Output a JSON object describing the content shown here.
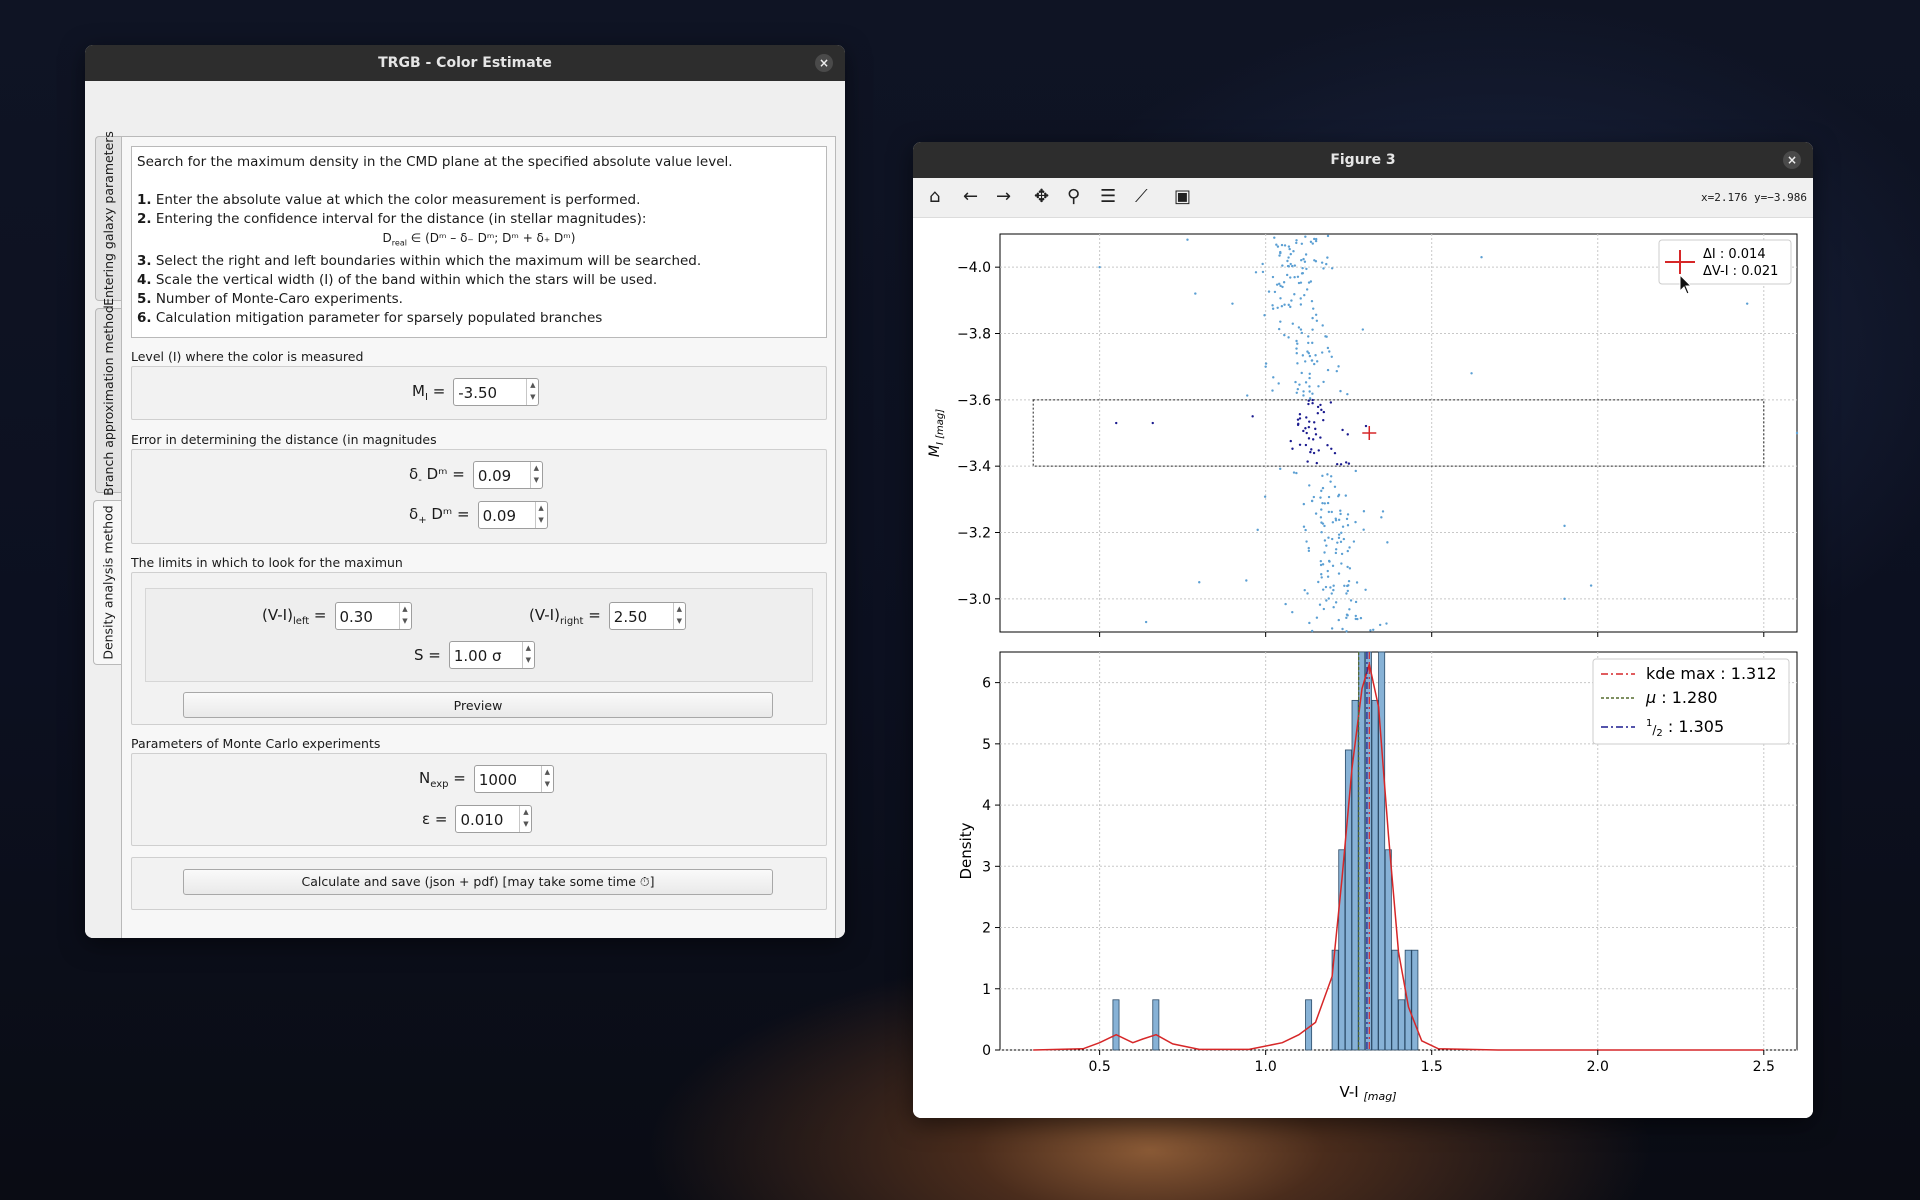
{
  "colors": {
    "accent": "#1f77b4",
    "kde": "#d62728",
    "selected": "#1b1b8f",
    "scatter": "#5b9fd3"
  },
  "left_window": {
    "title": "TRGB - Color Estimate",
    "close": "×",
    "tabs": [
      "Entering galaxy parameters",
      "Branch approximation method",
      "Density analysis method"
    ],
    "desc": {
      "intro": "Search for the maximum density in the CMD plane at the specified absolute value level.",
      "s1n": "1.",
      "s1": "Enter the absolute value at which the color measurement is performed.",
      "s2n": "2.",
      "s2": "Entering the confidence interval for the distance (in stellar magnitudes):",
      "formula": "D",
      "formula_sub": "real",
      "formula_rest": "∈ (Dᵐ – δ₋ Dᵐ; Dᵐ + δ₊ Dᵐ)",
      "s3n": "3.",
      "s3": "Select the right and left boundaries within which the maximum will be searched.",
      "s4n": "4.",
      "s4": "Scale the vertical width (I) of the band within which the stars will be used.",
      "s5n": "5.",
      "s5": "Number of Monte-Caro experiments.",
      "s6n": "6.",
      "s6": "Calculation mitigation parameter for sparsely populated branches"
    },
    "level_label": "Level (I) where the color is measured",
    "mi": {
      "label": "M",
      "sub": "I",
      "eq": "=",
      "value": "-3.50"
    },
    "err_label": "Error in determining the distance (in magnitudes",
    "dminus": {
      "label": "δ",
      "sub": "-",
      "rest": "Dᵐ =",
      "value": "0.09"
    },
    "dplus": {
      "label": "δ",
      "sub": "+",
      "rest": "Dᵐ =",
      "value": "0.09"
    },
    "limits_label": "The limits in which to look for the maximun",
    "vileft": {
      "label": "(V-I)",
      "sub": "left",
      "eq": "=",
      "value": "0.30"
    },
    "viright": {
      "label": "(V-I)",
      "sub": "right",
      "eq": "=",
      "value": "2.50"
    },
    "s": {
      "label": "S =",
      "value": "1.00 σ"
    },
    "preview": "Preview",
    "mc_label": "Parameters of Monte Carlo experiments",
    "nexp": {
      "label": "N",
      "sub": "exp",
      "eq": "=",
      "value": "1000"
    },
    "eps": {
      "label": "ε =",
      "value": "0.010"
    },
    "calc": "Calculate and save (json + pdf) [may take some time ⏱]"
  },
  "figure_window": {
    "title": "Figure 3",
    "close": "×",
    "coords": "x=2.176 y=−3.986",
    "toolbar": [
      "home-icon",
      "back-arrow-icon",
      "forward-arrow-icon",
      "pan-icon",
      "zoom-icon",
      "configure-subplots-icon",
      "edit-axis-icon",
      "save-icon"
    ]
  },
  "chart_data": [
    {
      "type": "scatter",
      "ylabel": "M",
      "ylabel_sub": "I [mag]",
      "xlim": [
        0.2,
        2.6
      ],
      "ylim": [
        -2.9,
        -4.1
      ],
      "yticks": [
        "−4.0",
        "−3.8",
        "−3.6",
        "−3.4",
        "−3.2",
        "−3.0"
      ],
      "ytick_vals": [
        -4.0,
        -3.8,
        -3.6,
        -3.4,
        -3.2,
        -3.0
      ],
      "band": {
        "x": [
          0.3,
          2.5
        ],
        "y": [
          -3.4,
          -3.6
        ]
      },
      "marker": {
        "x": 1.312,
        "y": -3.5
      },
      "legend": {
        "l1": "ΔI    : 0.014",
        "l2": "ΔV-I : 0.021"
      }
    },
    {
      "type": "bar",
      "xlabel": "V-I",
      "xlabel_sub": "[mag]",
      "ylabel": "Density",
      "xlim": [
        0.2,
        2.6
      ],
      "ylim": [
        0,
        6.5
      ],
      "xticks": [
        "0.5",
        "1.0",
        "1.5",
        "2.0",
        "2.5"
      ],
      "xtick_vals": [
        0.5,
        1.0,
        1.5,
        2.0,
        2.5
      ],
      "yticks": [
        "0",
        "1",
        "2",
        "3",
        "4",
        "5",
        "6"
      ],
      "ytick_vals": [
        0,
        1,
        2,
        3,
        4,
        5,
        6
      ],
      "bin_width": 0.0185,
      "bins": [
        [
          0.54,
          0.82
        ],
        [
          0.66,
          0.82
        ],
        [
          1.12,
          0.82
        ],
        [
          1.2,
          1.63
        ],
        [
          1.22,
          3.27
        ],
        [
          1.24,
          4.9
        ],
        [
          1.26,
          5.71
        ],
        [
          1.28,
          6.53
        ],
        [
          1.3,
          6.53
        ],
        [
          1.32,
          5.71
        ],
        [
          1.34,
          6.53
        ],
        [
          1.36,
          3.27
        ],
        [
          1.38,
          1.63
        ],
        [
          1.4,
          0.82
        ],
        [
          1.42,
          1.63
        ],
        [
          1.44,
          1.63
        ]
      ],
      "kde": [
        [
          0.3,
          0
        ],
        [
          0.45,
          0.02
        ],
        [
          0.5,
          0.12
        ],
        [
          0.55,
          0.25
        ],
        [
          0.6,
          0.12
        ],
        [
          0.63,
          0.18
        ],
        [
          0.67,
          0.25
        ],
        [
          0.72,
          0.1
        ],
        [
          0.8,
          0.01
        ],
        [
          0.95,
          0.01
        ],
        [
          1.05,
          0.12
        ],
        [
          1.1,
          0.25
        ],
        [
          1.15,
          0.45
        ],
        [
          1.2,
          1.2
        ],
        [
          1.23,
          2.8
        ],
        [
          1.26,
          4.6
        ],
        [
          1.29,
          5.9
        ],
        [
          1.312,
          6.3
        ],
        [
          1.34,
          5.6
        ],
        [
          1.37,
          3.5
        ],
        [
          1.4,
          1.6
        ],
        [
          1.43,
          0.7
        ],
        [
          1.47,
          0.15
        ],
        [
          1.52,
          0.02
        ],
        [
          1.7,
          0
        ],
        [
          2.5,
          0
        ]
      ],
      "lines": {
        "kde_max": 1.312,
        "mu": 1.28,
        "half": 1.305
      },
      "legend": {
        "kde": "kde max : 1.312",
        "mu_sym": "μ",
        "mu": "   : 1.280",
        "half_sup": "1",
        "half_sub": "2",
        "half": " : 1.305"
      }
    }
  ]
}
